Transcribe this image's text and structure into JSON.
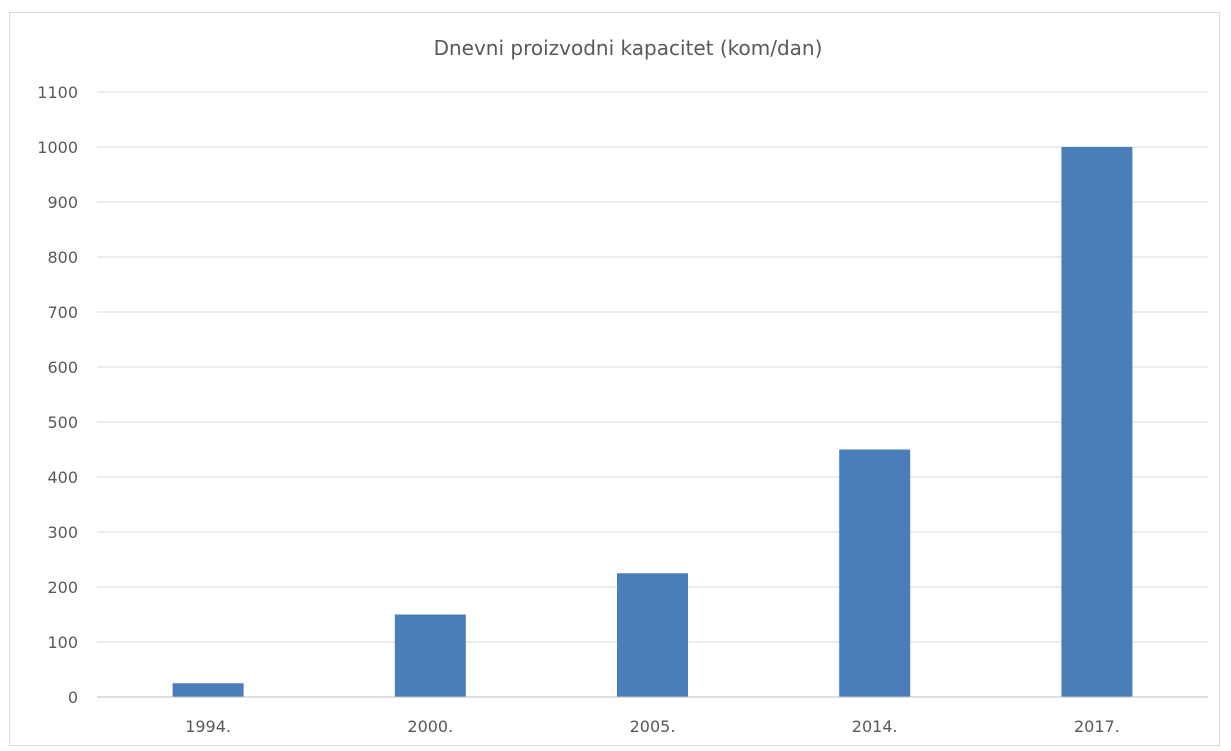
{
  "chart_data": {
    "type": "bar",
    "title": "Dnevni proizvodni kapacitet (kom/dan)",
    "xlabel": "",
    "ylabel": "",
    "categories": [
      "1994.",
      "2000.",
      "2005.",
      "2014.",
      "2017."
    ],
    "values": [
      25,
      150,
      225,
      450,
      1000
    ],
    "ylim": [
      0,
      1100
    ],
    "yticks": [
      0,
      100,
      200,
      300,
      400,
      500,
      600,
      700,
      800,
      900,
      1000,
      1100
    ],
    "grid": true,
    "legend": "none",
    "colors": {
      "bar": "#4a7ebb",
      "grid": "#d9d9d9",
      "text": "#595959"
    }
  }
}
